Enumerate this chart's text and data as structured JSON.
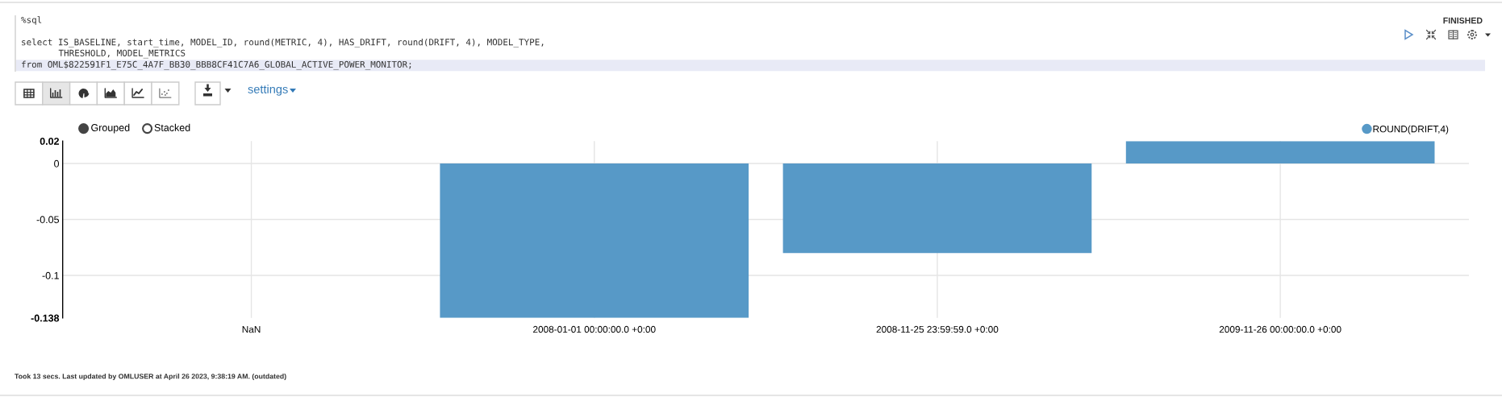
{
  "chart_data": {
    "type": "bar",
    "categories": [
      "NaN",
      "2008-01-01 00:00:00.0 +0:00",
      "2008-11-25 23:59:59.0 +0:00",
      "2009-11-26 00:00:00.0 +0:00"
    ],
    "series": [
      {
        "name": "ROUND(DRIFT,4)",
        "color": "#5799c7",
        "values": [
          null,
          -0.138,
          -0.08,
          0.02
        ]
      }
    ],
    "ylim": [
      -0.138,
      0.02
    ],
    "yticks": [
      0.02,
      0,
      -0.05,
      -0.1,
      -0.138
    ],
    "grid": true,
    "legend": "top right",
    "annotations": [
      "%sql",
      "select IS_BASELINE, start_time, MODEL_ID, round(METRIC, 4), HAS_DRIFT, round(DRIFT, 4), MODEL_TYPE,",
      "THRESHOLD, MODEL_METRICS",
      "from OML$822591F1_E75C_4A7F_BB30_BBB8CF41C7A6_GLOBAL_ACTIVE_POWER_MONITOR;",
      "settings",
      "FINISHED",
      "Grouped",
      "Stacked",
      "Took 13 secs. Last updated by OMLUSER at April 26 2023, 9:38:19 AM. (outdated)"
    ]
  }
}
